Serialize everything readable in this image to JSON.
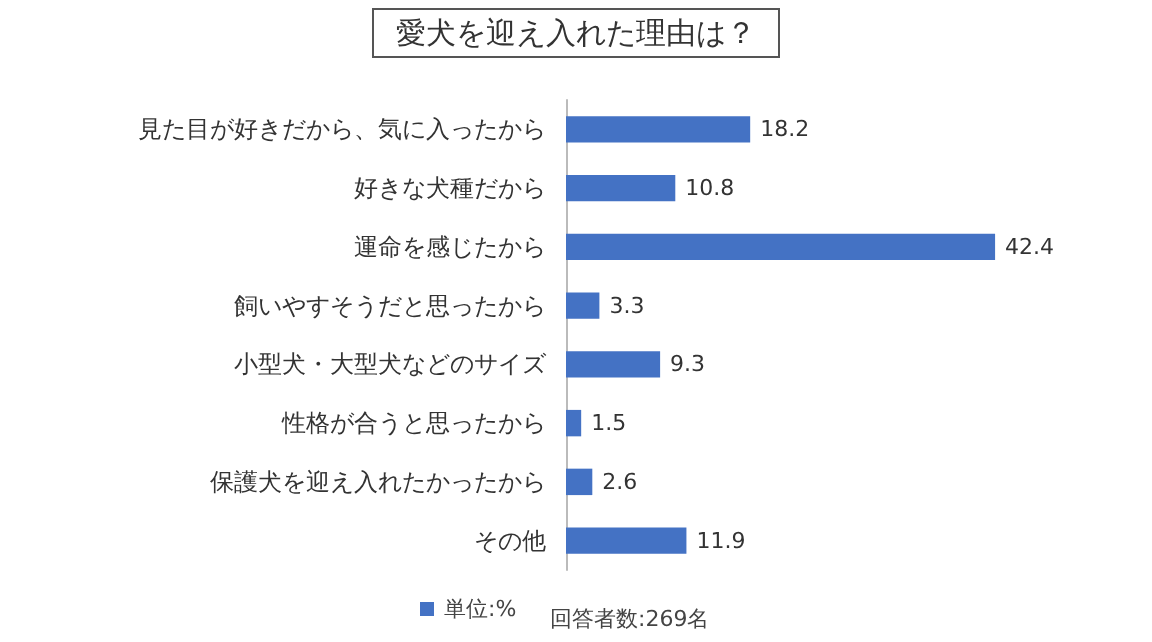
{
  "chart_data": {
    "type": "bar",
    "orientation": "horizontal",
    "title": "愛犬を迎え入れた理由は？",
    "categories": [
      "見た目が好きだから、気に入ったから",
      "好きな犬種だから",
      "運命を感じたから",
      "飼いやすそうだと思ったから",
      "小型犬・大型犬などのサイズ",
      "性格が合うと思ったから",
      "保護犬を迎え入れたかったから",
      "その他"
    ],
    "series": [
      {
        "name": "単位:%",
        "color": "#4472c4",
        "values": [
          18.2,
          10.8,
          42.4,
          3.3,
          9.3,
          1.5,
          2.6,
          11.9
        ]
      }
    ],
    "data_labels": true,
    "grid": false,
    "legend": "bottom",
    "annotations": [
      "回答者数:269名"
    ]
  }
}
